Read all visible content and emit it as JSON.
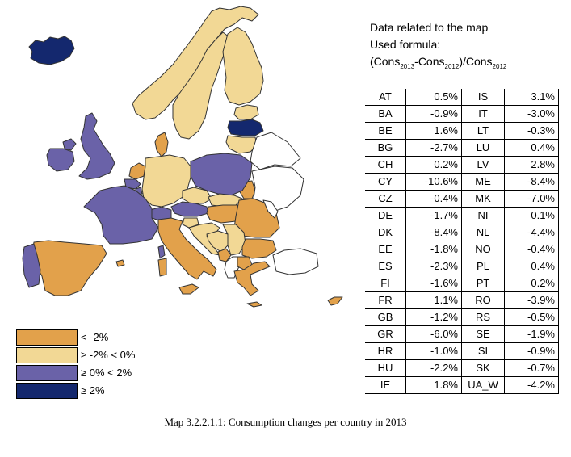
{
  "colors": {
    "lt_m2": "#E2A14B",
    "m2_0": "#F2D895",
    "p0_2": "#6A62A8",
    "gt_2": "#14286E",
    "no_data": "#FFFFFF",
    "border": "#333333"
  },
  "legend": [
    {
      "label": "< -2%",
      "color_key": "lt_m2"
    },
    {
      "label": "≥ -2% < 0%",
      "color_key": "m2_0"
    },
    {
      "label": "≥ 0% < 2%",
      "color_key": "p0_2"
    },
    {
      "label": "≥ 2%",
      "color_key": "gt_2"
    }
  ],
  "info": {
    "title": "Data related to the map",
    "formula_label": "Used formula:",
    "formula": {
      "p1": "(Cons",
      "s1": "2013",
      "p2": "-Cons",
      "s2": "2012",
      "p3": ")/Cons",
      "s3": "2012"
    }
  },
  "table": [
    {
      "c1": "AT",
      "v1": "0.5%",
      "c2": "IS",
      "v2": "3.1%"
    },
    {
      "c1": "BA",
      "v1": "-0.9%",
      "c2": "IT",
      "v2": "-3.0%"
    },
    {
      "c1": "BE",
      "v1": "1.6%",
      "c2": "LT",
      "v2": "-0.3%"
    },
    {
      "c1": "BG",
      "v1": "-2.7%",
      "c2": "LU",
      "v2": "0.4%"
    },
    {
      "c1": "CH",
      "v1": "0.2%",
      "c2": "LV",
      "v2": "2.8%"
    },
    {
      "c1": "CY",
      "v1": "-10.6%",
      "c2": "ME",
      "v2": "-8.4%"
    },
    {
      "c1": "CZ",
      "v1": "-0.4%",
      "c2": "MK",
      "v2": "-7.0%"
    },
    {
      "c1": "DE",
      "v1": "-1.7%",
      "c2": "NI",
      "v2": "0.1%"
    },
    {
      "c1": "DK",
      "v1": "-8.4%",
      "c2": "NL",
      "v2": "-4.4%"
    },
    {
      "c1": "EE",
      "v1": "-1.8%",
      "c2": "NO",
      "v2": "-0.4%"
    },
    {
      "c1": "ES",
      "v1": "-2.3%",
      "c2": "PL",
      "v2": "0.4%"
    },
    {
      "c1": "FI",
      "v1": "-1.6%",
      "c2": "PT",
      "v2": "0.2%"
    },
    {
      "c1": "FR",
      "v1": "1.1%",
      "c2": "RO",
      "v2": "-3.9%"
    },
    {
      "c1": "GB",
      "v1": "-1.2%",
      "c2": "RS",
      "v2": "-0.5%"
    },
    {
      "c1": "GR",
      "v1": "-6.0%",
      "c2": "SE",
      "v2": "-1.9%"
    },
    {
      "c1": "HR",
      "v1": "-1.0%",
      "c2": "SI",
      "v2": "-0.9%"
    },
    {
      "c1": "HU",
      "v1": "-2.2%",
      "c2": "SK",
      "v2": "-0.7%"
    },
    {
      "c1": "IE",
      "v1": "1.8%",
      "c2": "UA_W",
      "v2": "-4.2%"
    }
  ],
  "caption": "Map 3.2.2.1.1: Consumption changes per country in 2013"
}
